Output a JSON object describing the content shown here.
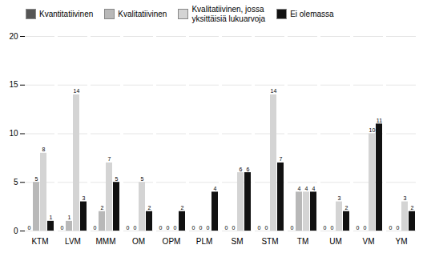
{
  "chart_data": {
    "type": "bar",
    "categories": [
      "KTM",
      "LVM",
      "MMM",
      "OM",
      "OPM",
      "PLM",
      "SM",
      "STM",
      "TM",
      "UM",
      "VM",
      "YM"
    ],
    "series": [
      {
        "name": "Kvantitatiivinen",
        "color": "#555555",
        "values": [
          0,
          0,
          0,
          0,
          0,
          0,
          0,
          0,
          0,
          0,
          0,
          0
        ]
      },
      {
        "name": "Kvalitatiivinen",
        "color": "#b8b8b8",
        "values": [
          5,
          1,
          2,
          0,
          0,
          0,
          0,
          0,
          4,
          0,
          0,
          0
        ]
      },
      {
        "name": "Kvalitatiivinen, jossa\nyksittäisiä lukuarvoja",
        "color": "#d4d4d4",
        "values": [
          8,
          14,
          7,
          5,
          0,
          0,
          6,
          14,
          4,
          3,
          10,
          3
        ]
      },
      {
        "name": "Ei olemassa",
        "color": "#111111",
        "values": [
          1,
          3,
          5,
          2,
          2,
          4,
          6,
          7,
          4,
          2,
          11,
          2
        ]
      }
    ],
    "ylim": [
      0,
      20
    ],
    "yticks": [
      0,
      5,
      10,
      15,
      20
    ],
    "grid": true,
    "legend": "upper left",
    "data_labels": true
  }
}
